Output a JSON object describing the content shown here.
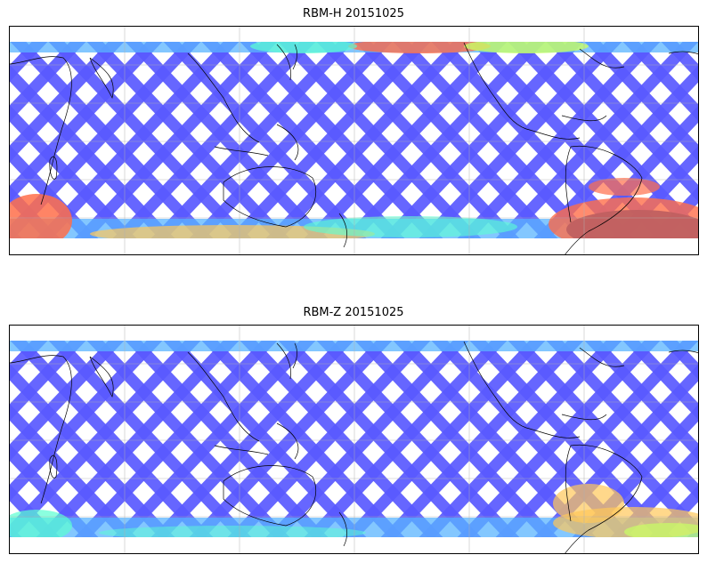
{
  "panels": [
    {
      "title": "RBM-H 20151025"
    },
    {
      "title": "RBM-Z 20151025"
    }
  ],
  "map": {
    "projection": "cylindrical",
    "grid": true,
    "colormap": "jet",
    "colors": [
      "#5a5aff",
      "#5ab4ff",
      "#5affd2",
      "#c8ff64",
      "#ffc85a",
      "#ff6e4a",
      "#c06060"
    ]
  }
}
